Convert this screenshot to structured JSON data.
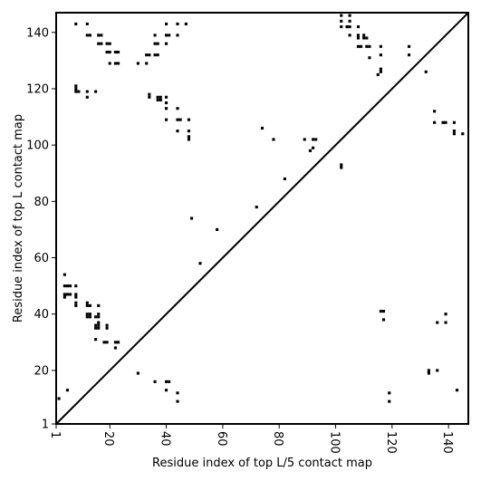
{
  "chart_data": {
    "type": "scatter",
    "title": "",
    "xlabel": "Residue index of top L/5 contact map",
    "ylabel": "Residue index of top L contact map",
    "xlim": [
      1,
      147
    ],
    "ylim": [
      1,
      147
    ],
    "xticks": [
      1,
      20,
      40,
      60,
      80,
      100,
      120,
      140
    ],
    "yticks": [
      1,
      20,
      40,
      60,
      80,
      100,
      120,
      140
    ],
    "diagonal": true,
    "grid": false,
    "marker": "square",
    "marker_color": "#000000",
    "upper_triangle_points": [
      [
        8,
        143
      ],
      [
        12,
        143
      ],
      [
        40,
        143
      ],
      [
        44,
        143
      ],
      [
        47,
        143
      ],
      [
        12,
        139
      ],
      [
        13,
        139
      ],
      [
        16,
        139
      ],
      [
        17,
        139
      ],
      [
        36,
        139
      ],
      [
        40,
        139
      ],
      [
        41,
        139
      ],
      [
        44,
        139
      ],
      [
        16,
        136
      ],
      [
        17,
        136
      ],
      [
        19,
        136
      ],
      [
        20,
        136
      ],
      [
        36,
        136
      ],
      [
        37,
        136
      ],
      [
        40,
        136
      ],
      [
        19,
        133
      ],
      [
        20,
        133
      ],
      [
        22,
        133
      ],
      [
        23,
        133
      ],
      [
        33,
        132
      ],
      [
        34,
        132
      ],
      [
        36,
        132
      ],
      [
        37,
        132
      ],
      [
        20,
        129
      ],
      [
        22,
        129
      ],
      [
        23,
        129
      ],
      [
        30,
        129
      ],
      [
        33,
        129
      ],
      [
        8,
        121
      ],
      [
        8,
        120
      ],
      [
        8,
        119
      ],
      [
        9,
        119
      ],
      [
        12,
        119
      ],
      [
        15,
        119
      ],
      [
        12,
        117
      ],
      [
        34,
        118
      ],
      [
        34,
        117
      ],
      [
        37,
        117
      ],
      [
        38,
        117
      ],
      [
        40,
        117
      ],
      [
        37,
        116
      ],
      [
        38,
        116
      ],
      [
        40,
        115
      ],
      [
        40,
        113
      ],
      [
        44,
        113
      ],
      [
        40,
        109
      ],
      [
        44,
        109
      ],
      [
        45,
        109
      ],
      [
        48,
        109
      ],
      [
        44,
        105
      ],
      [
        48,
        105
      ],
      [
        48,
        103
      ],
      [
        48,
        102
      ],
      [
        74,
        106
      ],
      [
        78,
        102
      ],
      [
        89,
        102
      ],
      [
        92,
        102
      ],
      [
        93,
        102
      ],
      [
        92,
        99
      ],
      [
        91,
        98
      ],
      [
        82,
        88
      ],
      [
        102,
        93
      ],
      [
        102,
        92
      ],
      [
        72,
        78
      ],
      [
        49,
        74
      ],
      [
        58,
        70
      ],
      [
        52,
        58
      ],
      [
        102,
        146
      ],
      [
        105,
        146
      ],
      [
        102,
        144
      ],
      [
        105,
        144
      ],
      [
        102,
        142
      ],
      [
        104,
        142
      ],
      [
        105,
        142
      ],
      [
        108,
        142
      ],
      [
        105,
        139
      ],
      [
        108,
        139
      ],
      [
        110,
        139
      ],
      [
        108,
        138
      ],
      [
        110,
        138
      ],
      [
        111,
        138
      ],
      [
        108,
        135
      ],
      [
        109,
        135
      ],
      [
        111,
        135
      ],
      [
        112,
        135
      ],
      [
        116,
        135
      ],
      [
        126,
        135
      ],
      [
        112,
        131
      ],
      [
        116,
        132
      ],
      [
        126,
        132
      ],
      [
        116,
        127
      ],
      [
        116,
        126
      ],
      [
        115,
        125
      ],
      [
        132,
        126
      ]
    ],
    "lower_triangle_points": [
      [
        4,
        54
      ],
      [
        4,
        50
      ],
      [
        5,
        50
      ],
      [
        6,
        50
      ],
      [
        8,
        50
      ],
      [
        4,
        47
      ],
      [
        5,
        47
      ],
      [
        6,
        47
      ],
      [
        8,
        47
      ],
      [
        8,
        46
      ],
      [
        4,
        46
      ],
      [
        8,
        44
      ],
      [
        12,
        44
      ],
      [
        12,
        43
      ],
      [
        8,
        43
      ],
      [
        13,
        43
      ],
      [
        16,
        43
      ],
      [
        12,
        40
      ],
      [
        13,
        40
      ],
      [
        16,
        40
      ],
      [
        12,
        39
      ],
      [
        13,
        39
      ],
      [
        15,
        39
      ],
      [
        16,
        39
      ],
      [
        16,
        37
      ],
      [
        15,
        36
      ],
      [
        16,
        36
      ],
      [
        19,
        36
      ],
      [
        15,
        35
      ],
      [
        16,
        35
      ],
      [
        19,
        35
      ],
      [
        15,
        31
      ],
      [
        18,
        30
      ],
      [
        19,
        30
      ],
      [
        22,
        30
      ],
      [
        23,
        30
      ],
      [
        22,
        28
      ],
      [
        2,
        10
      ],
      [
        5,
        13
      ],
      [
        30,
        19
      ],
      [
        36,
        16
      ],
      [
        40,
        16
      ],
      [
        41,
        16
      ],
      [
        40,
        13
      ],
      [
        44,
        12
      ],
      [
        44,
        9
      ],
      [
        135,
        112
      ],
      [
        135,
        108
      ],
      [
        138,
        108
      ],
      [
        139,
        108
      ],
      [
        142,
        108
      ],
      [
        142,
        105
      ],
      [
        142,
        104
      ],
      [
        145,
        104
      ],
      [
        116,
        41
      ],
      [
        117,
        41
      ],
      [
        117,
        38
      ],
      [
        136,
        37
      ],
      [
        139,
        40
      ],
      [
        139,
        37
      ],
      [
        133,
        20
      ],
      [
        133,
        19
      ],
      [
        136,
        20
      ],
      [
        143,
        13
      ],
      [
        119,
        12
      ],
      [
        119,
        9
      ]
    ]
  }
}
